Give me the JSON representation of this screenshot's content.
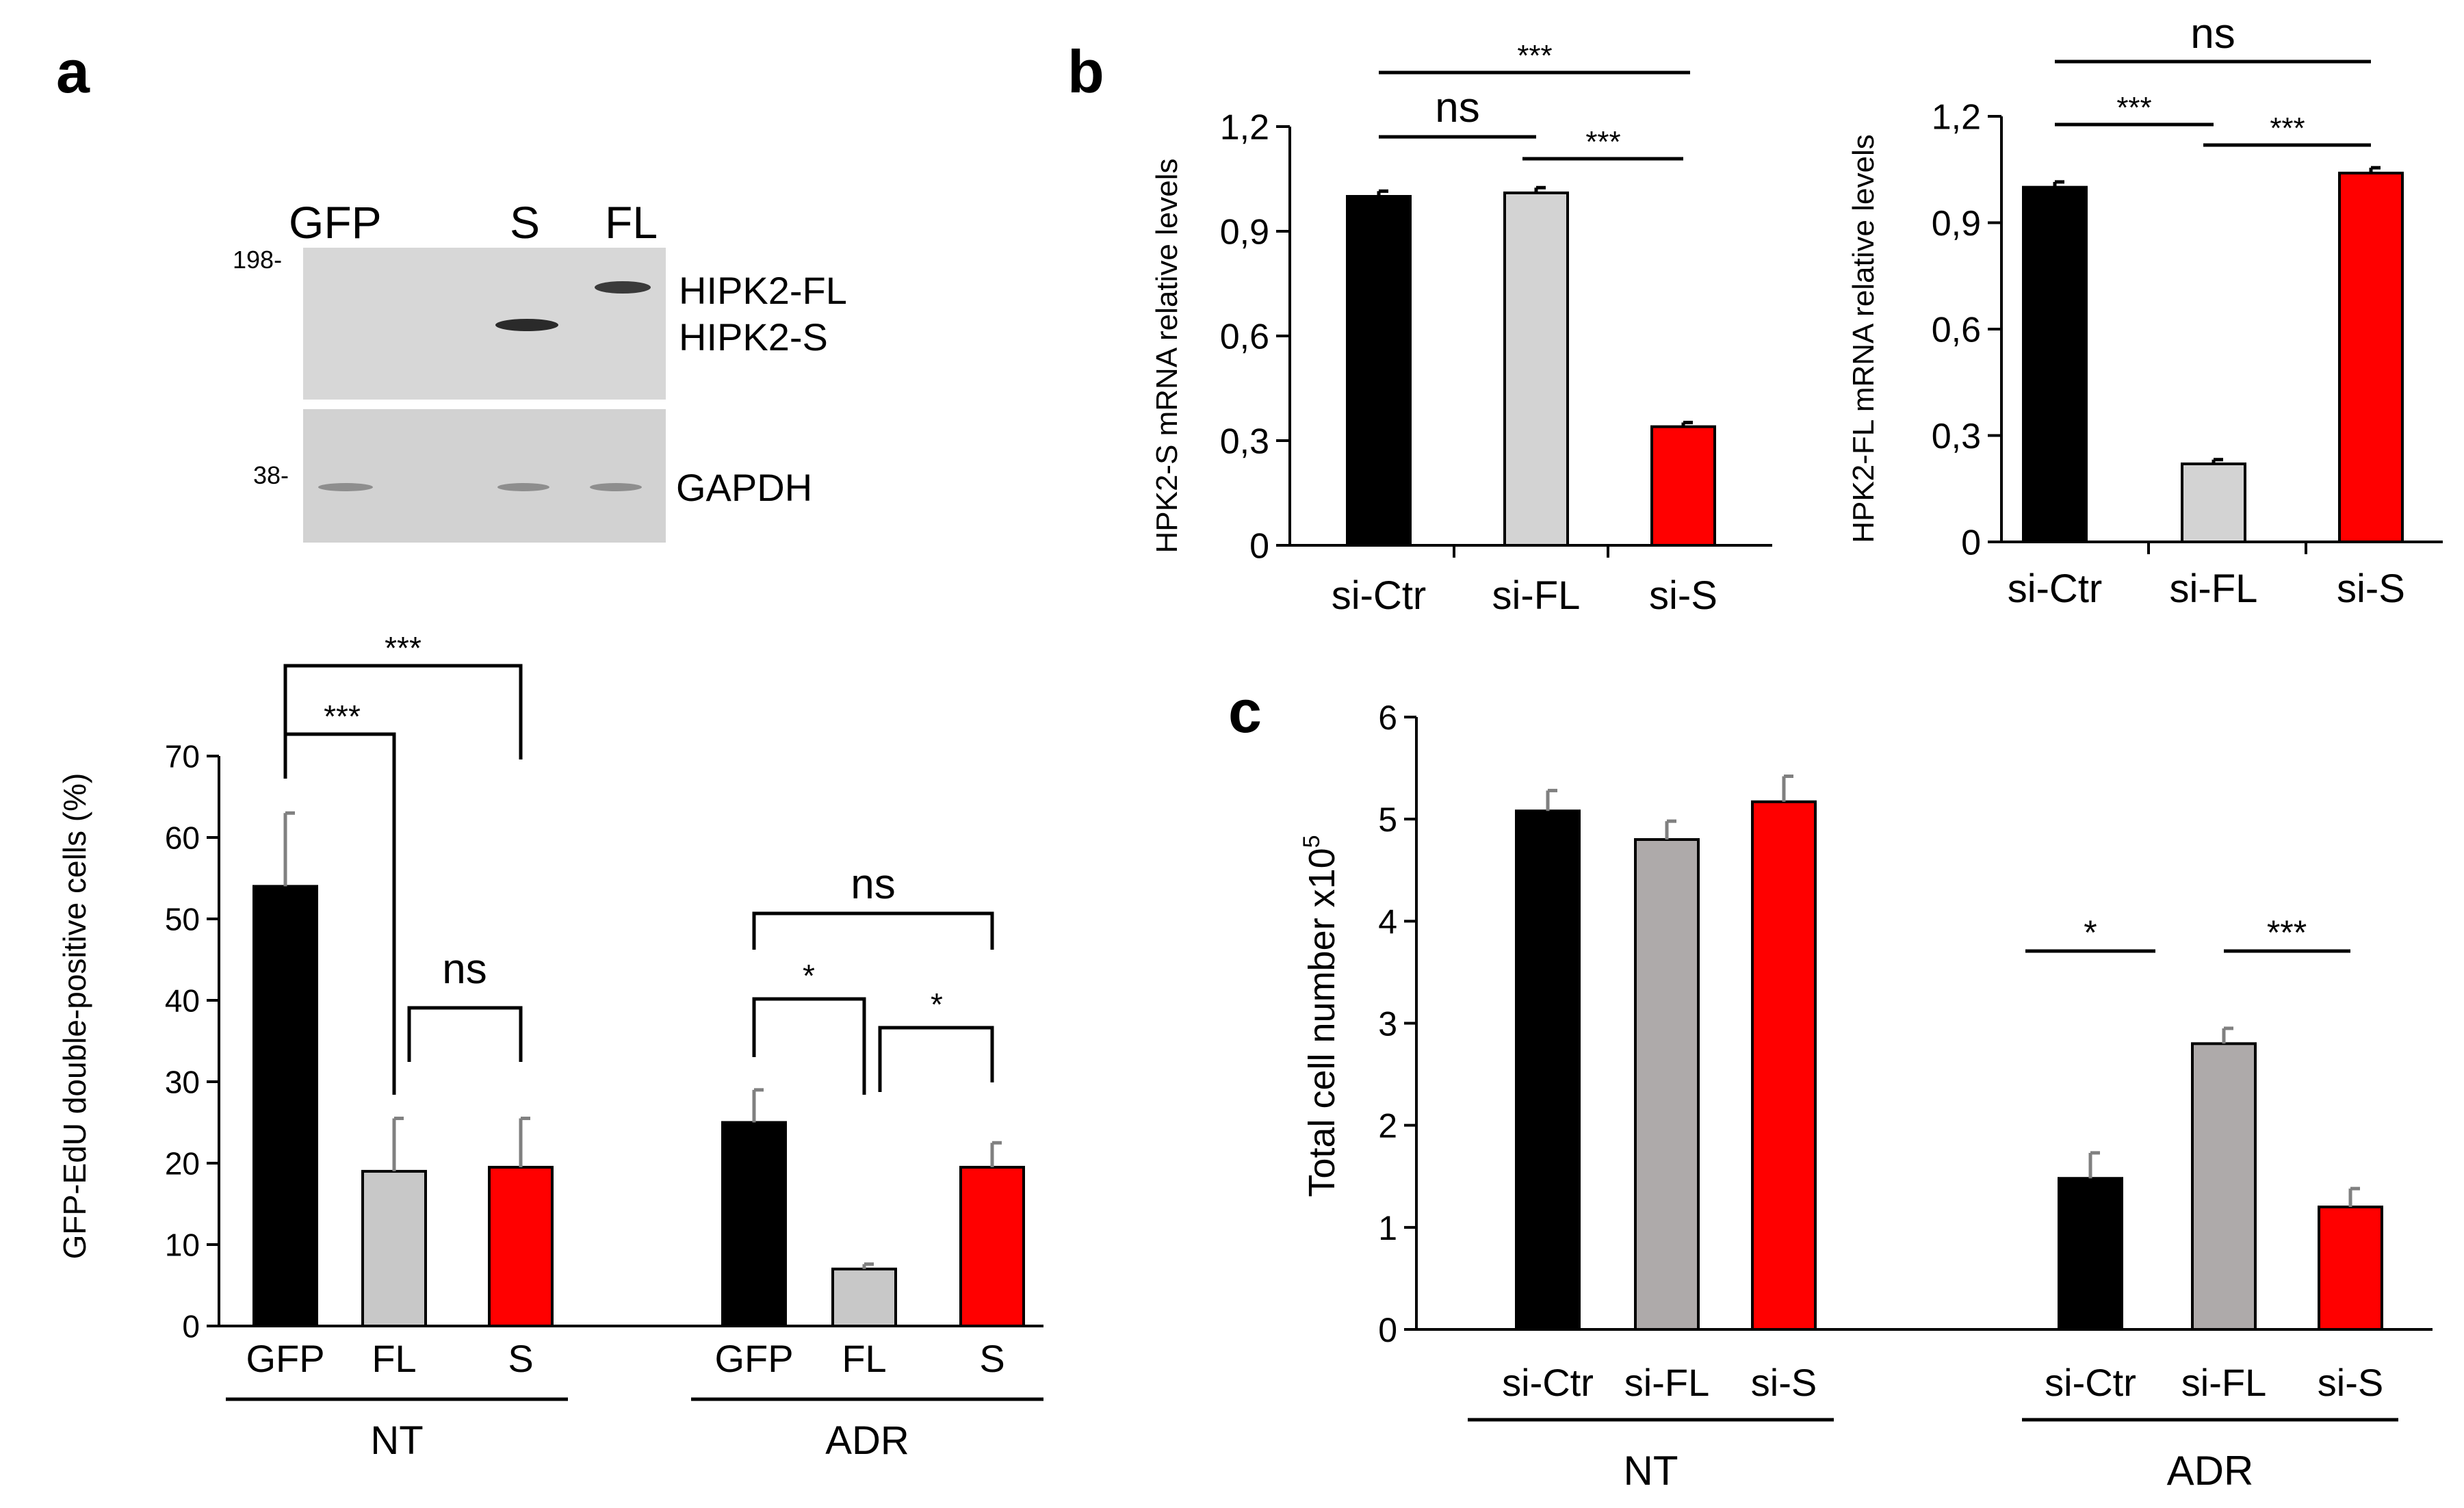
{
  "blot": {
    "panel_label": "a",
    "lanes": [
      "GFP",
      "S",
      "FL"
    ],
    "markers": [
      "198-",
      "38-"
    ],
    "band_labels": [
      "HIPK2-FL",
      "HIPK2-S",
      "GAPDH"
    ]
  },
  "chart_data": [
    {
      "id": "edu",
      "type": "bar",
      "ylabel": "GFP-EdU double-positive cells (%)",
      "ylim": [
        0,
        70
      ],
      "yticks": [
        "0",
        "10",
        "20",
        "30",
        "40",
        "50",
        "60",
        "70"
      ],
      "groups": [
        {
          "name": "NT",
          "categories": [
            "GFP",
            "FL",
            "S"
          ],
          "values": [
            54,
            19,
            19.5
          ],
          "errors": [
            9,
            6.5,
            6
          ]
        },
        {
          "name": "ADR",
          "categories": [
            "GFP",
            "FL",
            "S"
          ],
          "values": [
            25,
            7,
            19.5
          ],
          "errors": [
            4,
            0.6,
            3
          ]
        }
      ],
      "colors": [
        "#000000",
        "#c8c8c8",
        "#ff0000"
      ],
      "significance": [
        "***",
        "***",
        "ns",
        "ns",
        "*",
        "*"
      ]
    },
    {
      "id": "b1",
      "panel_label": "b",
      "type": "bar",
      "ylabel": "HPK2-S mRNA relative levels",
      "ylim": [
        0,
        1.2
      ],
      "yticks": [
        "0",
        "0,3",
        "0,6",
        "0,9",
        "1,2"
      ],
      "categories": [
        "si-Ctr",
        "si-FL",
        "si-S"
      ],
      "values": [
        1.0,
        1.01,
        0.34
      ],
      "errors": [
        0.015,
        0.015,
        0.012
      ],
      "colors": [
        "#000000",
        "#d3d3d3",
        "#ff0000"
      ],
      "significance": [
        "***",
        "ns",
        "***"
      ]
    },
    {
      "id": "b2",
      "type": "bar",
      "ylabel": "HPK2-FL mRNA relative levels",
      "ylim": [
        0,
        1.2
      ],
      "yticks": [
        "0",
        "0,3",
        "0,6",
        "0,9",
        "1,2"
      ],
      "categories": [
        "si-Ctr",
        "si-FL",
        "si-S"
      ],
      "values": [
        1.0,
        0.22,
        1.04
      ],
      "errors": [
        0.015,
        0.012,
        0.015
      ],
      "colors": [
        "#000000",
        "#d3d3d3",
        "#ff0000"
      ],
      "significance": [
        "ns",
        "***",
        "***"
      ]
    },
    {
      "id": "c",
      "panel_label": "c",
      "type": "bar",
      "ylabel": "Total cell number x10",
      "ylabel_sup": "5",
      "ylim": [
        0,
        6
      ],
      "yticks": [
        "0",
        "1",
        "2",
        "3",
        "4",
        "5",
        "6"
      ],
      "groups": [
        {
          "name": "NT",
          "categories": [
            "si-Ctr",
            "si-FL",
            "si-S"
          ],
          "values": [
            5.08,
            4.8,
            5.17
          ],
          "errors": [
            0.2,
            0.18,
            0.25
          ]
        },
        {
          "name": "ADR",
          "categories": [
            "si-Ctr",
            "si-FL",
            "si-S"
          ],
          "values": [
            1.48,
            2.8,
            1.2
          ],
          "errors": [
            0.25,
            0.15,
            0.18
          ]
        }
      ],
      "colors": [
        "#000000",
        "#aeaaaa",
        "#ff0000"
      ],
      "significance": [
        "*",
        "***"
      ]
    }
  ]
}
